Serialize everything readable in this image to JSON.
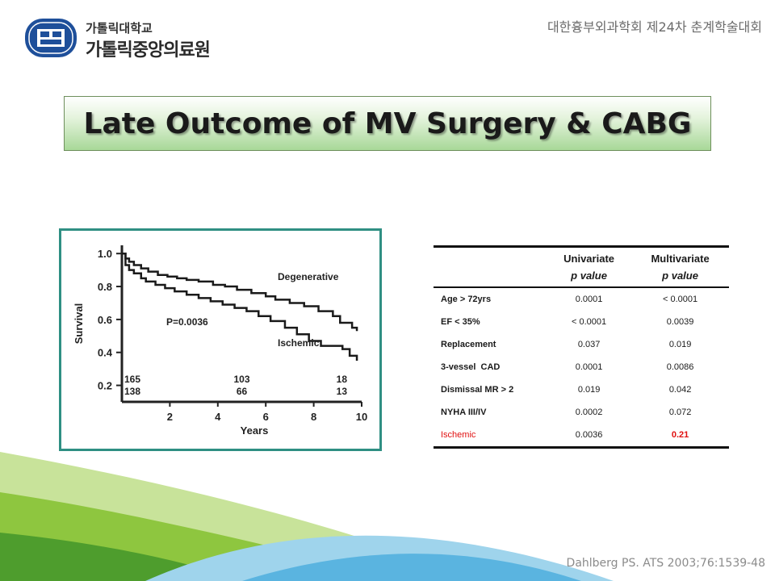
{
  "header": {
    "logo_mark_name": "catholic-university-seal-icon",
    "logo_subtitle": "가톨릭대학교",
    "logo_title": "가톨릭중앙의료원",
    "conference": "대한흉부외과학회 제24차 춘계학술대회"
  },
  "slide": {
    "title": "Late Outcome of MV Surgery & CABG",
    "citation": "Dahlberg PS. ATS 2003;76:1539-48"
  },
  "chart_data": {
    "type": "line",
    "title": "",
    "xlabel": "Years",
    "ylabel": "Survival",
    "xlim": [
      0,
      10
    ],
    "ylim": [
      0.1,
      1.05
    ],
    "xticks": [
      2,
      4,
      6,
      8,
      10
    ],
    "yticks": [
      "0.2",
      "0.4",
      "0.6",
      "0.8",
      "1.0"
    ],
    "annotation": "P=0.0036",
    "series": [
      {
        "name": "Degenerative",
        "step": true,
        "x": [
          0,
          0.15,
          0.3,
          0.5,
          0.8,
          1.1,
          1.5,
          1.9,
          2.3,
          2.7,
          3.2,
          3.8,
          4.3,
          4.8,
          5.4,
          6.0,
          6.4,
          7.0,
          7.6,
          8.2,
          8.8,
          9.1,
          9.6,
          9.8
        ],
        "y": [
          1.0,
          0.97,
          0.95,
          0.93,
          0.91,
          0.89,
          0.87,
          0.86,
          0.85,
          0.84,
          0.83,
          0.81,
          0.8,
          0.78,
          0.76,
          0.74,
          0.72,
          0.7,
          0.68,
          0.65,
          0.62,
          0.58,
          0.55,
          0.53
        ]
      },
      {
        "name": "Ischemic",
        "step": true,
        "x": [
          0,
          0.15,
          0.3,
          0.5,
          0.8,
          1.0,
          1.4,
          1.8,
          2.2,
          2.7,
          3.2,
          3.7,
          4.2,
          4.7,
          5.2,
          5.7,
          6.2,
          6.8,
          7.3,
          7.8,
          8.3,
          9.2,
          9.5,
          9.8
        ],
        "y": [
          1.0,
          0.93,
          0.9,
          0.88,
          0.85,
          0.83,
          0.81,
          0.79,
          0.77,
          0.75,
          0.73,
          0.71,
          0.69,
          0.67,
          0.65,
          0.62,
          0.59,
          0.55,
          0.51,
          0.47,
          0.44,
          0.42,
          0.38,
          0.35
        ]
      }
    ],
    "at_risk": [
      {
        "x": 0,
        "degenerative": "165",
        "ischemic": "138"
      },
      {
        "x": 5,
        "degenerative": "103",
        "ischemic": "66"
      },
      {
        "x": 10,
        "degenerative": "18",
        "ischemic": "13"
      }
    ]
  },
  "table": {
    "headers": [
      {
        "line1": "",
        "line2": ""
      },
      {
        "line1": "Univariate",
        "line2": "p value"
      },
      {
        "line1": "Multivariate",
        "line2": "p value"
      }
    ],
    "rows": [
      {
        "label": "Age > 72yrs",
        "uni": "0.0001",
        "multi": "< 0.0001"
      },
      {
        "label": "EF < 35%",
        "uni": "< 0.0001",
        "multi": "0.0039"
      },
      {
        "label": "Replacement",
        "uni": "0.037",
        "multi": "0.019"
      },
      {
        "label": "3-vessel  CAD",
        "uni": "0.0001",
        "multi": "0.0086"
      },
      {
        "label": "Dismissal MR > 2",
        "uni": "0.019",
        "multi": "0.042"
      },
      {
        "label": "NYHA III/IV",
        "uni": "0.0002",
        "multi": "0.072"
      },
      {
        "label": "Ischemic",
        "uni": "0.0036",
        "multi": "0.21"
      }
    ]
  },
  "colors": {
    "accent_green": "#8ec63f",
    "accent_blue": "#5ab4e0",
    "frame_teal": "#2f8f83",
    "highlight_red": "#e01010"
  }
}
